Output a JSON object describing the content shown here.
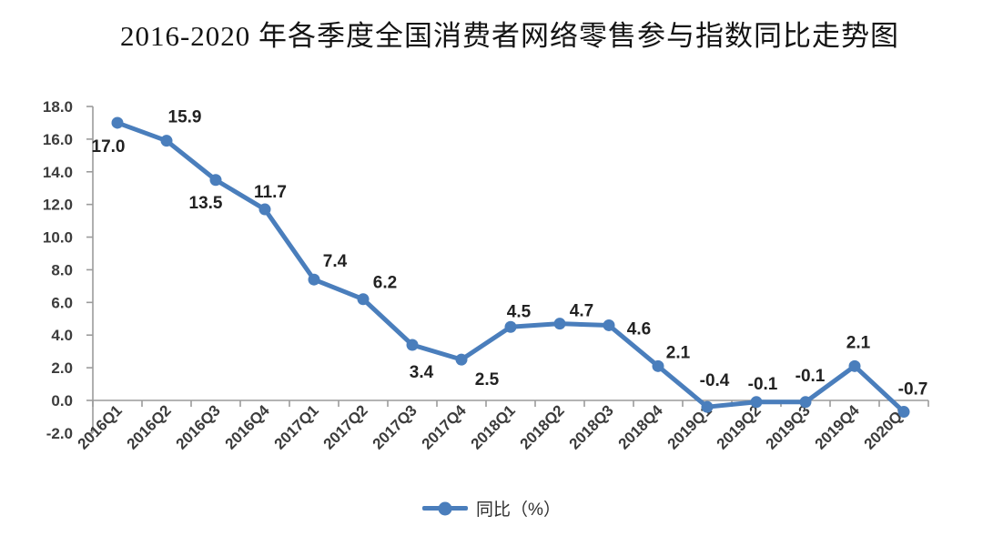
{
  "title": "2016-2020 年各季度全国消费者网络零售参与指数同比走势图",
  "legend": {
    "label": "同比（%）"
  },
  "colors": {
    "line": "#4a7ebc",
    "marker": "#4a7ebc",
    "axis": "#9b9b9b",
    "axis_text": "#3c3c3c",
    "data_label_text": "#222222",
    "title_text": "#141414",
    "background": "#ffffff"
  },
  "chart_data": {
    "type": "line",
    "title": "2016-2020 年各季度全国消费者网络零售参与指数同比走势图",
    "categories": [
      "2016Q1",
      "2016Q2",
      "2016Q3",
      "2016Q4",
      "2017Q1",
      "2017Q2",
      "2017Q3",
      "2017Q4",
      "2018Q1",
      "2018Q2",
      "2018Q3",
      "2018Q4",
      "2019Q1",
      "2019Q2",
      "2019Q3",
      "2019Q4",
      "2020Q1"
    ],
    "series": [
      {
        "name": "同比（%）",
        "values": [
          17.0,
          15.9,
          13.5,
          11.7,
          7.4,
          6.2,
          3.4,
          2.5,
          4.5,
          4.7,
          4.6,
          2.1,
          -0.4,
          -0.1,
          -0.1,
          2.1,
          -0.7
        ]
      }
    ],
    "xlabel": "",
    "ylabel": "",
    "ylim": [
      -2.0,
      18.0
    ],
    "ytick_step": 2.0,
    "ytick_labels": [
      "-2.0",
      "0.0",
      "2.0",
      "4.0",
      "6.0",
      "8.0",
      "10.0",
      "12.0",
      "14.0",
      "16.0",
      "18.0"
    ],
    "grid": false,
    "data_labels": true,
    "marker": "circle",
    "legend_position": "bottom",
    "x_label_rotation": -45
  }
}
